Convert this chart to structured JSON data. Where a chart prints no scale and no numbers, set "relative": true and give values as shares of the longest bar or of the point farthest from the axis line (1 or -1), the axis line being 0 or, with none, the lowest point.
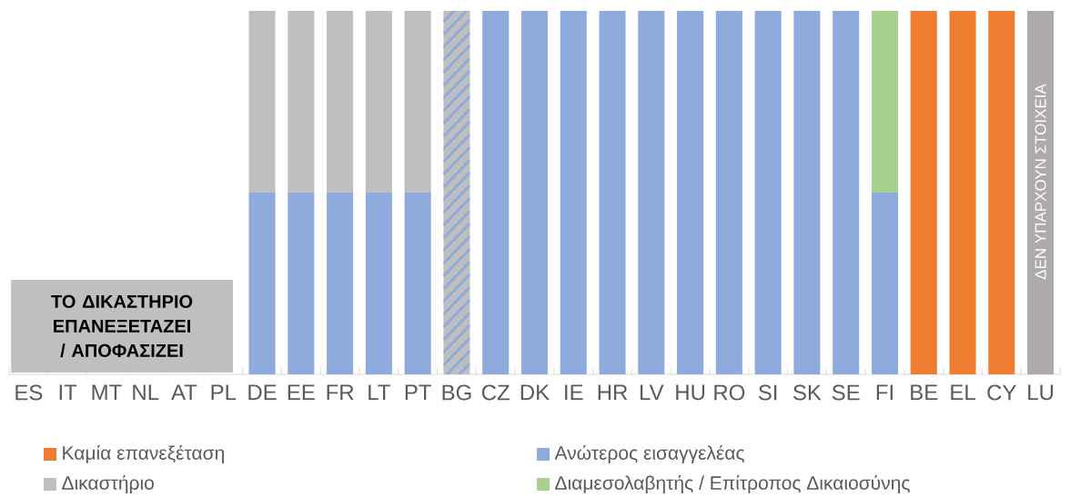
{
  "chart_data": {
    "type": "bar",
    "stacked": true,
    "relative": true,
    "legend": "bottom",
    "categories": [
      "ES",
      "IT",
      "MT",
      "NL",
      "AT",
      "PL",
      "DE",
      "EE",
      "FR",
      "LT",
      "PT",
      "BG",
      "CZ",
      "DK",
      "IE",
      "HR",
      "LV",
      "HU",
      "RO",
      "SI",
      "SK",
      "SE",
      "FI",
      "BE",
      "EL",
      "CY",
      "LU"
    ],
    "series": [
      {
        "name": "Καμία επανεξέταση",
        "color": "#ed7d31",
        "values": [
          null,
          null,
          null,
          null,
          null,
          null,
          null,
          null,
          null,
          null,
          null,
          null,
          null,
          null,
          null,
          null,
          null,
          null,
          null,
          null,
          null,
          null,
          null,
          1,
          1,
          1,
          null
        ]
      },
      {
        "name": "Ανώτερος εισαγγελέας",
        "color": "#8faadc",
        "values": [
          null,
          null,
          null,
          null,
          null,
          null,
          0.5,
          0.5,
          0.5,
          0.5,
          0.5,
          null,
          1,
          1,
          1,
          1,
          1,
          1,
          1,
          1,
          1,
          1,
          0.5,
          null,
          null,
          null,
          null
        ]
      },
      {
        "name": "Δικαστήριο",
        "color": "#bfbfbf",
        "values": [
          null,
          null,
          null,
          null,
          null,
          null,
          0.5,
          0.5,
          0.5,
          0.5,
          0.5,
          null,
          null,
          null,
          null,
          null,
          null,
          null,
          null,
          null,
          null,
          null,
          null,
          null,
          null,
          null,
          null
        ]
      },
      {
        "name": "Διαμεσολαβητής / Επίτροπος Δικαιοσύνης",
        "color": "#a9d18e",
        "values": [
          null,
          null,
          null,
          null,
          null,
          null,
          null,
          null,
          null,
          null,
          null,
          null,
          null,
          null,
          null,
          null,
          null,
          null,
          null,
          null,
          null,
          null,
          0.5,
          null,
          null,
          null,
          null
        ]
      },
      {
        "color": "#bfbfbf",
        "values": [
          null,
          null,
          null,
          null,
          null,
          null,
          null,
          null,
          null,
          null,
          null,
          1,
          null,
          null,
          null,
          null,
          null,
          null,
          null,
          null,
          null,
          null,
          null,
          null,
          null,
          null,
          null
        ]
      },
      {
        "color": "#aeaaaa",
        "values": [
          null,
          null,
          null,
          null,
          null,
          null,
          null,
          null,
          null,
          null,
          null,
          null,
          null,
          null,
          null,
          null,
          null,
          null,
          null,
          null,
          null,
          null,
          null,
          null,
          null,
          null,
          1
        ]
      }
    ],
    "annotations": [
      "ΤΟ ΔΙΚΑΣΤΗΡΙΟ ΕΠΑΝΕΞΕΤΑΖΕΙ / ΑΠΟΦΑΣΙΖΕΙ",
      "ΔΕΝ ΥΠΑΡΧΟΥΝ ΣΤΟΙΧΕΙΑ"
    ]
  }
}
